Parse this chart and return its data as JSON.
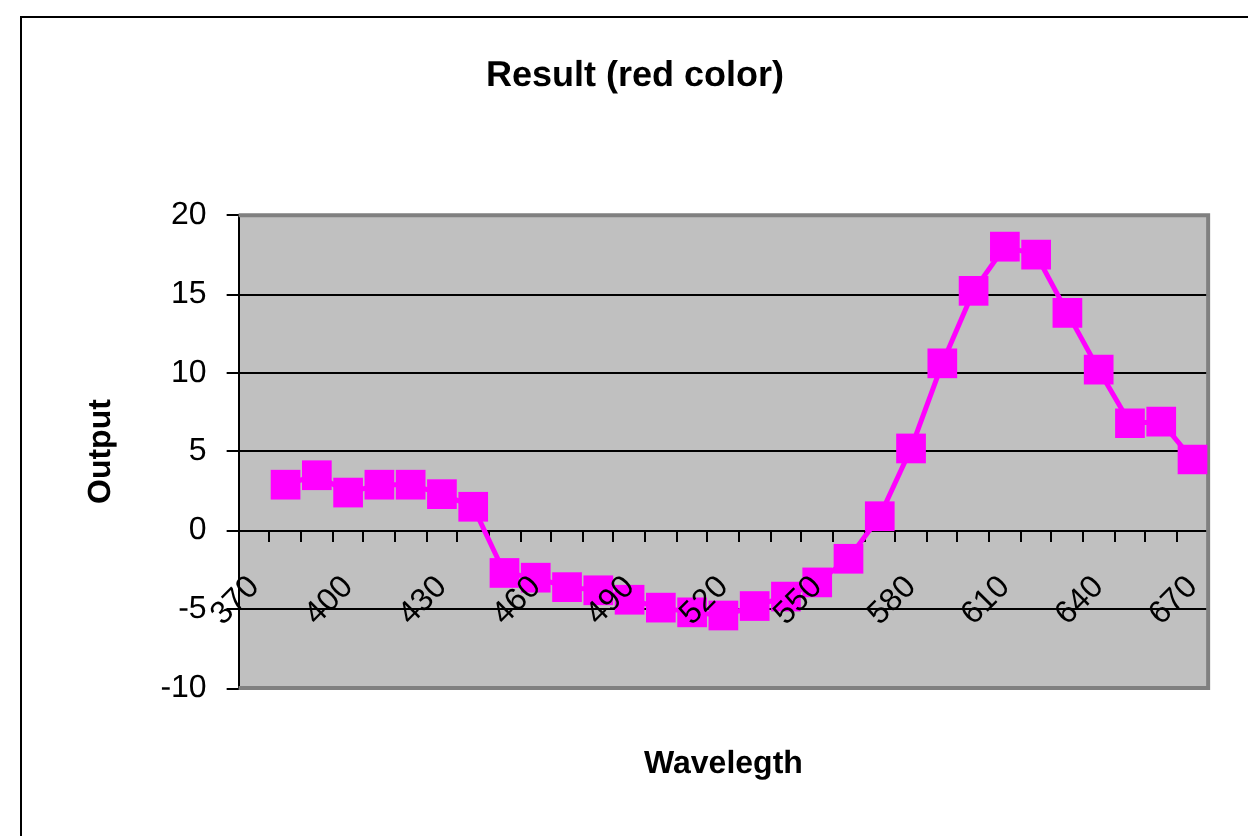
{
  "chart_data": {
    "type": "line",
    "title": "Result (red color)",
    "xlabel": "Wavelegth",
    "ylabel": "Output",
    "categories": [
      "370",
      null,
      null,
      "400",
      null,
      null,
      "430",
      null,
      null,
      "460",
      null,
      null,
      "490",
      null,
      null,
      "520",
      null,
      null,
      "550",
      null,
      null,
      "580",
      null,
      null,
      "610",
      null,
      null,
      "640",
      null,
      null,
      "670"
    ],
    "series": [
      {
        "color": "#ff00ff",
        "values": [
          null,
          2.9,
          3.5,
          2.4,
          2.9,
          2.9,
          2.3,
          1.5,
          -2.7,
          -3.0,
          -3.6,
          -3.8,
          -4.4,
          -4.9,
          -5.2,
          -5.4,
          -4.8,
          -4.2,
          -3.3,
          -1.8,
          0.9,
          5.2,
          10.6,
          15.2,
          18.0,
          17.5,
          13.8,
          10.2,
          6.8,
          6.9,
          4.5
        ]
      }
    ],
    "ylim": [
      -10,
      20
    ],
    "yticks": [
      -10,
      -5,
      0,
      5,
      10,
      15,
      20
    ],
    "grid": "y",
    "marker": "square",
    "line_style": "solid"
  }
}
